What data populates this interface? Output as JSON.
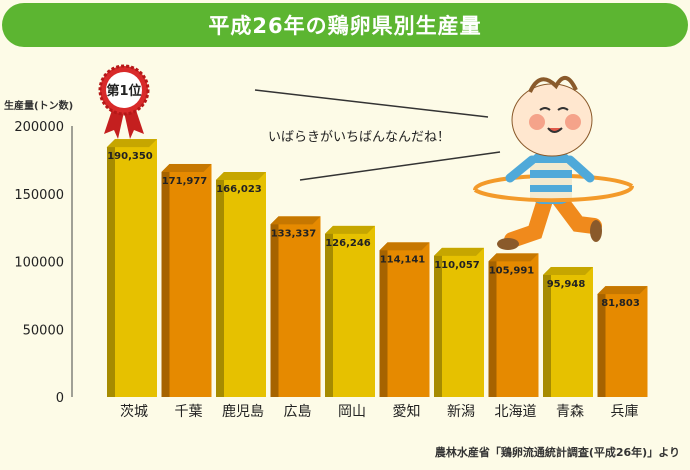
{
  "title": "平成26年の鶏卵県別生産量",
  "source": "農林水産省「鶏卵流通統計調査(平成26年)」より",
  "speech": "いばらきがいちばんなんだね！",
  "badge": "第1位",
  "colors": {
    "background": "#fdfbe7",
    "title_bar": "#5cb531",
    "bar_yellow": "#e6c100",
    "bar_orange": "#e68a00",
    "badge_red": "#d82a2a"
  },
  "chart_data": {
    "type": "bar",
    "ylabel": "生産量(トン数)",
    "ylim": [
      0,
      200000
    ],
    "yticks": [
      0,
      50000,
      100000,
      150000,
      200000
    ],
    "grid": false,
    "categories": [
      "茨城",
      "千葉",
      "鹿児島",
      "広島",
      "岡山",
      "愛知",
      "新潟",
      "北海道",
      "青森",
      "兵庫"
    ],
    "values": [
      190350,
      171977,
      166023,
      133337,
      126246,
      114141,
      110057,
      105991,
      95948,
      81803
    ],
    "data_labels": [
      "190,350",
      "171,977",
      "166,023",
      "133,337",
      "126,246",
      "114,141",
      "110,057",
      "105,991",
      "95,948",
      "81,803"
    ],
    "bar_colors": [
      "yellow",
      "orange",
      "yellow",
      "orange",
      "yellow",
      "orange",
      "yellow",
      "orange",
      "yellow",
      "orange"
    ]
  }
}
